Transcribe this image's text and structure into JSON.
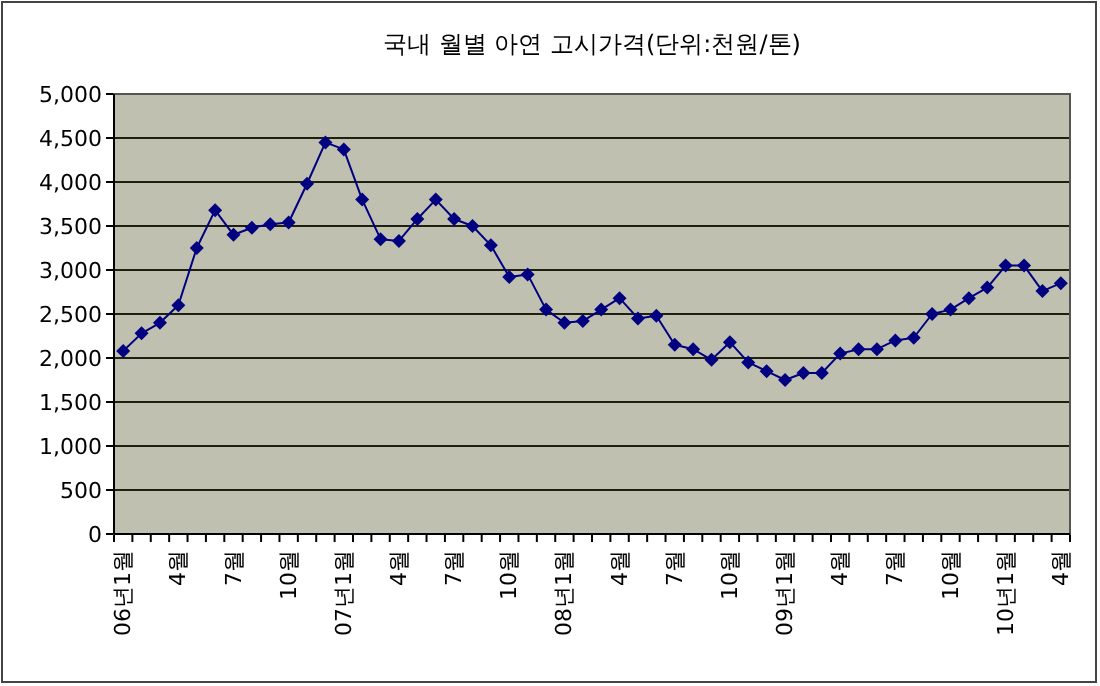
{
  "chart_data": {
    "type": "line",
    "title": "국내 월별 아연 고시가격(단위:천원/톤)",
    "categories": [
      "06년1월",
      null,
      null,
      "4월",
      null,
      null,
      "7월",
      null,
      null,
      "10월",
      null,
      null,
      "07년1월",
      null,
      null,
      "4월",
      null,
      null,
      "7월",
      null,
      null,
      "10월",
      null,
      null,
      "08년1월",
      null,
      null,
      "4월",
      null,
      null,
      "7월",
      null,
      null,
      "10월",
      null,
      null,
      "09년1월",
      null,
      null,
      "4월",
      null,
      null,
      "7월",
      null,
      null,
      "10월",
      null,
      null,
      "10년1월",
      null,
      null,
      "4월"
    ],
    "series": [
      {
        "color": "#000080",
        "values": [
          2080,
          2280,
          2400,
          2600,
          3250,
          3680,
          3400,
          3480,
          3520,
          3540,
          3980,
          4450,
          4370,
          3800,
          3350,
          3330,
          3580,
          3800,
          3580,
          3500,
          3280,
          2920,
          2950,
          2550,
          2400,
          2420,
          2550,
          2680,
          2450,
          2480,
          2150,
          2100,
          1980,
          2180,
          1950,
          1850,
          1750,
          1830,
          1830,
          2050,
          2100,
          2100,
          2200,
          2230,
          2500,
          2550,
          2680,
          2800,
          3050,
          3050,
          2760,
          2850
        ]
      }
    ],
    "ylim": [
      0,
      5000
    ],
    "yticks": [
      0,
      500,
      {
        "value": 1000,
        "label": "1,000"
      },
      {
        "value": 1500,
        "label": "1,500"
      },
      {
        "value": 2000,
        "label": "2,000"
      },
      {
        "value": 2500,
        "label": "2,500"
      },
      {
        "value": 3000,
        "label": "3,000"
      },
      {
        "value": 3500,
        "label": "3,500"
      },
      {
        "value": 4000,
        "label": "4,000"
      },
      {
        "value": 4500,
        "label": "4,500"
      },
      {
        "value": 5000,
        "label": "5,000"
      }
    ],
    "grid": "y",
    "marker": "diamond",
    "line_style": "solid"
  }
}
